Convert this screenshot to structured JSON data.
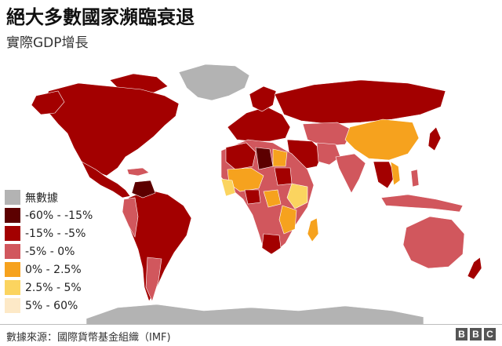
{
  "title": "絕大多數國家瀕臨衰退",
  "subtitle": "實際GDP增長",
  "legend": [
    {
      "label": "無數據",
      "color": "#b3b3b3"
    },
    {
      "label": "-60% - -15%",
      "color": "#5c0000"
    },
    {
      "label": "-15% - -5%",
      "color": "#a30000"
    },
    {
      "label": "-5% - 0%",
      "color": "#d1575d"
    },
    {
      "label": "0% - 2.5%",
      "color": "#f6a21e"
    },
    {
      "label": "2.5% - 5%",
      "color": "#fbd45f"
    },
    {
      "label": "5% - 60%",
      "color": "#fde9c7"
    }
  ],
  "source": "數據來源：國際貨幣基金組織（IMF)",
  "logo": [
    "B",
    "B",
    "C"
  ],
  "colors": {
    "no_data": "#b3b3b3",
    "band1": "#5c0000",
    "band2": "#a30000",
    "band3": "#d1575d",
    "band4": "#f6a21e",
    "band5": "#fbd45f",
    "band6": "#fde9c7"
  }
}
